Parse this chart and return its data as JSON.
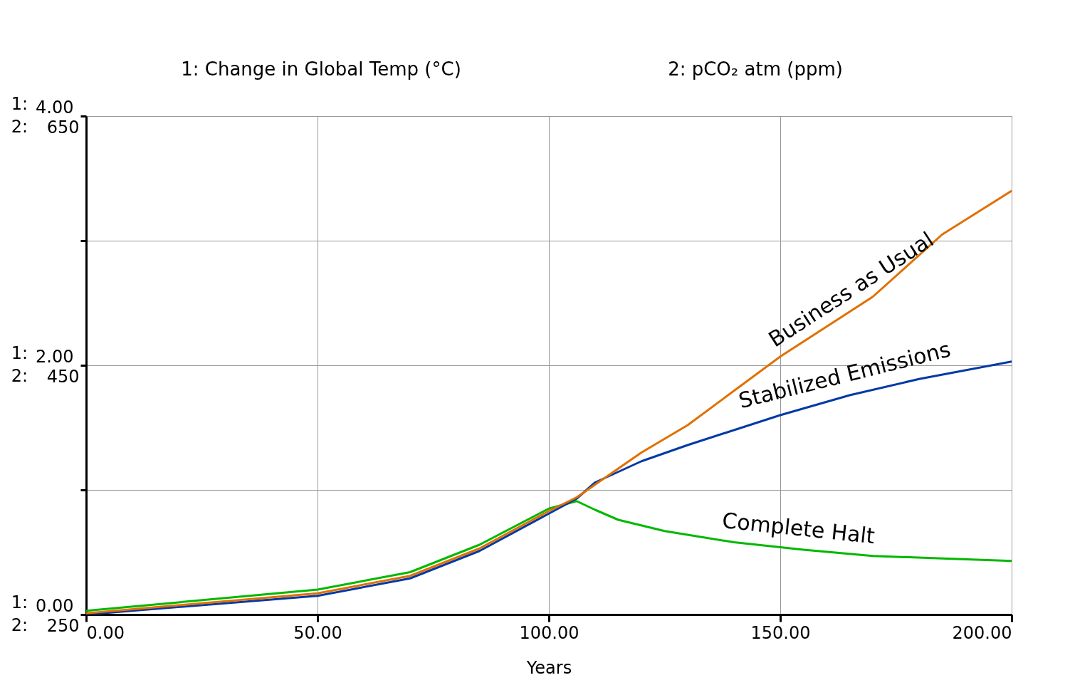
{
  "chart_data": {
    "type": "line",
    "xlabel": "Years",
    "xlim": [
      0,
      200
    ],
    "xticks": [
      {
        "value": 0,
        "label": "0.00"
      },
      {
        "value": 50,
        "label": "50.00"
      },
      {
        "value": 100,
        "label": "100.00"
      },
      {
        "value": 150,
        "label": "150.00"
      },
      {
        "value": 200,
        "label": "200.00"
      }
    ],
    "ylim": [
      0,
      4
    ],
    "yticks": [
      {
        "value": 0,
        "label": "0.00"
      },
      {
        "value": 1,
        "label": null
      },
      {
        "value": 2,
        "label": "2.00"
      },
      {
        "value": 3,
        "label": null
      },
      {
        "value": 4,
        "label": "4.00"
      }
    ],
    "y2lim": [
      250,
      650
    ],
    "y2ticks": [
      250,
      450,
      650
    ],
    "annotations": [
      "1:",
      "2:",
      "1: Change in Global Temp (°C)",
      "2: pCO₂ atm (ppm)"
    ],
    "grid": true,
    "legend": false,
    "series": [
      {
        "name": "Business as Usual",
        "color": "#e07000",
        "x": [
          0,
          50,
          70,
          85,
          100,
          106,
          120,
          130,
          150,
          170,
          185,
          200
        ],
        "values": [
          0.01,
          0.17,
          0.31,
          0.53,
          0.83,
          0.94,
          1.3,
          1.52,
          2.07,
          2.55,
          3.05,
          3.4
        ]
      },
      {
        "name": "Stabilized Emissions",
        "color": "#0039a6",
        "x": [
          0,
          50,
          70,
          85,
          100,
          106,
          110,
          120,
          130,
          150,
          165,
          180,
          200
        ],
        "values": [
          0.0,
          0.15,
          0.29,
          0.51,
          0.81,
          0.93,
          1.06,
          1.23,
          1.36,
          1.6,
          1.76,
          1.89,
          2.03
        ]
      },
      {
        "name": "Complete Halt",
        "color": "#00b800",
        "x": [
          0,
          50,
          70,
          85,
          100,
          106,
          110,
          115,
          125,
          140,
          155,
          170,
          185,
          200
        ],
        "values": [
          0.03,
          0.2,
          0.34,
          0.56,
          0.85,
          0.91,
          0.84,
          0.76,
          0.67,
          0.58,
          0.52,
          0.47,
          0.45,
          0.43
        ]
      }
    ]
  }
}
